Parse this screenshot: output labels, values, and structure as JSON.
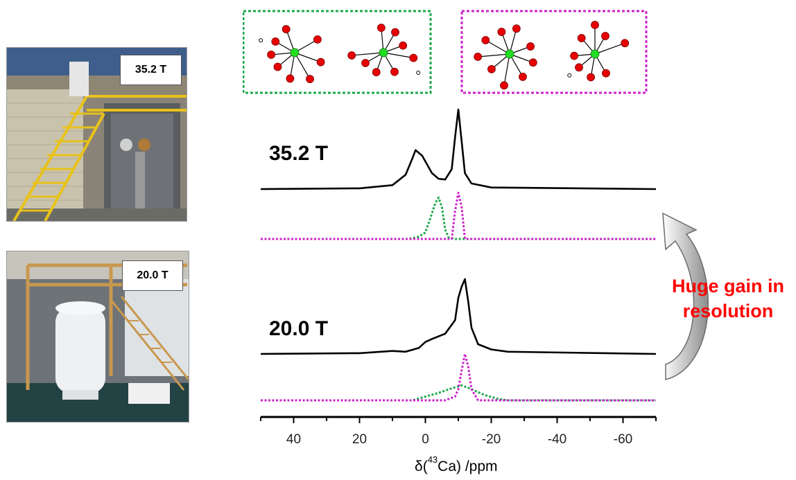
{
  "photos": [
    {
      "label": "35.2 T"
    },
    {
      "label": "20.0 T"
    }
  ],
  "annotation": {
    "line1": "Huge gain in",
    "line2": "resolution",
    "color": "#ff0000"
  },
  "axis": {
    "prefix": "δ(",
    "isotope_mass": "43",
    "suffix": "Ca) /ppm"
  },
  "colors": {
    "total": "#000000",
    "site_green": "#1aa84a",
    "site_magenta": "#cc22cc",
    "atom_ca": "#22dd22",
    "atom_o": "#e60000",
    "box_green": "#1aa84a",
    "box_magenta": "#cc22cc"
  },
  "chart_data": {
    "type": "line",
    "x_axis": {
      "reversed": true,
      "range": [
        50,
        -70
      ],
      "ticks": [
        40,
        20,
        0,
        -20,
        -40,
        -60
      ],
      "tick_labels": [
        "40",
        "20",
        "0",
        "-20",
        "-40",
        "-60"
      ]
    },
    "panels": [
      {
        "field_label": "35.2 T",
        "series": [
          {
            "style": "solid",
            "color": "#000000",
            "x": [
              50,
              20,
              10,
              6,
              4,
              3,
              1,
              -2,
              -4,
              -6,
              -8,
              -9,
              -10,
              -11,
              -12,
              -14,
              -20,
              -70
            ],
            "y": [
              0,
              0.01,
              0.05,
              0.18,
              0.38,
              0.49,
              0.42,
              0.2,
              0.13,
              0.12,
              0.25,
              0.65,
              1.0,
              0.6,
              0.2,
              0.07,
              0.02,
              0
            ]
          },
          {
            "style": "dotted",
            "color": "#1aa84a",
            "x": [
              50,
              5,
              2,
              0,
              -1,
              -3,
              -4,
              -5,
              -6,
              -7,
              -9,
              -70
            ],
            "y": [
              0,
              0,
              0.03,
              0.08,
              0.2,
              0.45,
              0.52,
              0.4,
              0.12,
              0.02,
              0,
              0
            ]
          },
          {
            "style": "dotted",
            "color": "#cc22cc",
            "x": [
              50,
              -8,
              -9,
              -10,
              -11,
              -12,
              -70
            ],
            "y": [
              0,
              0,
              0.35,
              0.58,
              0.4,
              0,
              0
            ]
          }
        ]
      },
      {
        "field_label": "20.0 T",
        "series": [
          {
            "style": "solid",
            "color": "#000000",
            "x": [
              50,
              20,
              10,
              6,
              2,
              0,
              -2,
              -6,
              -9,
              -10,
              -11,
              -12,
              -13,
              -14,
              -16,
              -20,
              -25,
              -70
            ],
            "y": [
              0,
              0.01,
              0.04,
              0.03,
              0.08,
              0.16,
              0.2,
              0.27,
              0.45,
              0.75,
              0.9,
              1.0,
              0.7,
              0.35,
              0.13,
              0.06,
              0.03,
              0
            ]
          },
          {
            "style": "dotted",
            "color": "#1aa84a",
            "x": [
              50,
              4,
              0,
              -4,
              -8,
              -11,
              -14,
              -18,
              -22,
              -25,
              -70
            ],
            "y": [
              0,
              0,
              0.05,
              0.1,
              0.16,
              0.2,
              0.15,
              0.07,
              0.02,
              0,
              0
            ]
          },
          {
            "style": "dotted",
            "color": "#cc22cc",
            "x": [
              50,
              -6,
              -9,
              -10,
              -11,
              -12,
              -13,
              -14,
              -16,
              -70
            ],
            "y": [
              0,
              0,
              0.05,
              0.15,
              0.4,
              0.62,
              0.45,
              0.15,
              0,
              0
            ]
          }
        ]
      }
    ]
  }
}
